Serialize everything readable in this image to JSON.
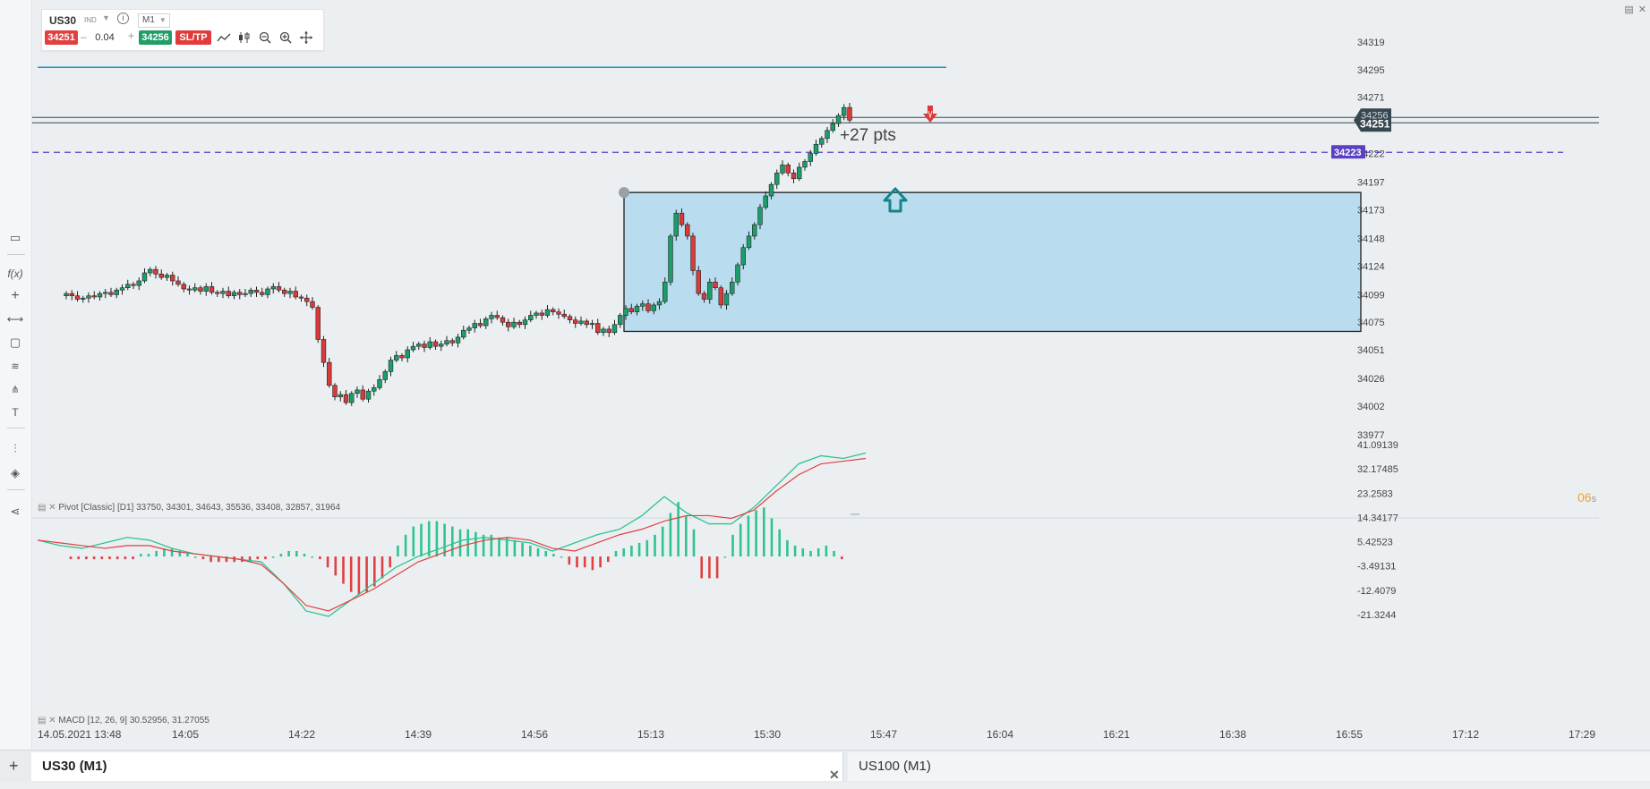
{
  "instrument": {
    "symbol": "US30",
    "type": "IND",
    "timeframe": "M1",
    "bid": "34251",
    "ask": "34256",
    "quantity": "0.04",
    "sltp_label": "SL/TP"
  },
  "tabs": [
    {
      "label": "US30 (M1)",
      "active": true
    },
    {
      "label": "US100 (M1)",
      "active": false
    }
  ],
  "chart": {
    "current_price_label": "34251",
    "overlay_price_label": "34256",
    "pending_line_label": "34223",
    "pips_annotation": "+27 pts",
    "countdown": "06",
    "countdown_unit": "s",
    "pivot_legend": "Pivot [Classic] [D1] 33750, 34301, 34643, 35536, 33408, 32857, 31964",
    "macd_legend": "MACD [12, 26, 9] 30.52956, 31.27055"
  },
  "chart_data": {
    "type": "candlestick",
    "price_axis": {
      "ticks": [
        "34319",
        "34295",
        "34271",
        "34246",
        "34222",
        "34197",
        "34173",
        "34148",
        "34124",
        "34099",
        "34075",
        "34051",
        "34026",
        "34002",
        "33977"
      ]
    },
    "macd_axis": {
      "ticks": [
        "41.09139",
        "32.17485",
        "23.2583",
        "14.34177",
        "5.42523",
        "-3.49131",
        "-12.4079",
        "-21.3244"
      ]
    },
    "time_axis": {
      "ticks": [
        "14.05.2021 13:48",
        "14:05",
        "14:22",
        "14:39",
        "14:56",
        "15:13",
        "15:30",
        "15:47",
        "16:04",
        "16:21",
        "16:38",
        "16:55",
        "17:12",
        "17:29"
      ]
    },
    "horizontal_lines": [
      {
        "name": "blue level",
        "price": 34297,
        "color": "#1e90d6"
      },
      {
        "name": "current price",
        "price": 34251,
        "color": "#37474f"
      },
      {
        "name": "pending order",
        "price": 34223,
        "color": "#5b3fc4"
      }
    ],
    "zone": {
      "price_top": 34188,
      "price_bottom": 34067,
      "color": "#b9ddef"
    }
  },
  "colors": {
    "bull": "#1c9e6a",
    "bear": "#d93a3a",
    "macd_line": "#2ec490",
    "signal_line": "#e04040",
    "bid_pill": "#e0403e",
    "ask_pill": "#1f9e66",
    "sltp_pill": "#e23b3b",
    "pending_label_bg": "#5b3fc4",
    "price_label_bg": "#37474f"
  },
  "icons": [
    "info-icon",
    "chevron-down-icon",
    "line-chart-icon",
    "candles-icon",
    "zoom-out-icon",
    "zoom-in-icon",
    "crosshair-icon",
    "function-icon",
    "plus-icon",
    "ruler-icon",
    "rectangle-icon",
    "fibonacci-icon",
    "pitchfork-icon",
    "text-icon",
    "indicator-icon",
    "layers-icon",
    "share-icon",
    "close-icon",
    "maximize-icon"
  ]
}
